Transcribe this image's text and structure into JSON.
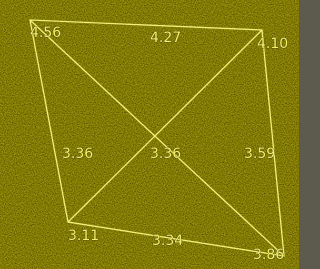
{
  "labels": {
    "corners": [
      "4.56",
      "4.10",
      "3.86",
      "3.11"
    ],
    "edges": [
      "4.27",
      "3.59",
      "3.34",
      "3.36"
    ],
    "center": "3.36"
  }
}
